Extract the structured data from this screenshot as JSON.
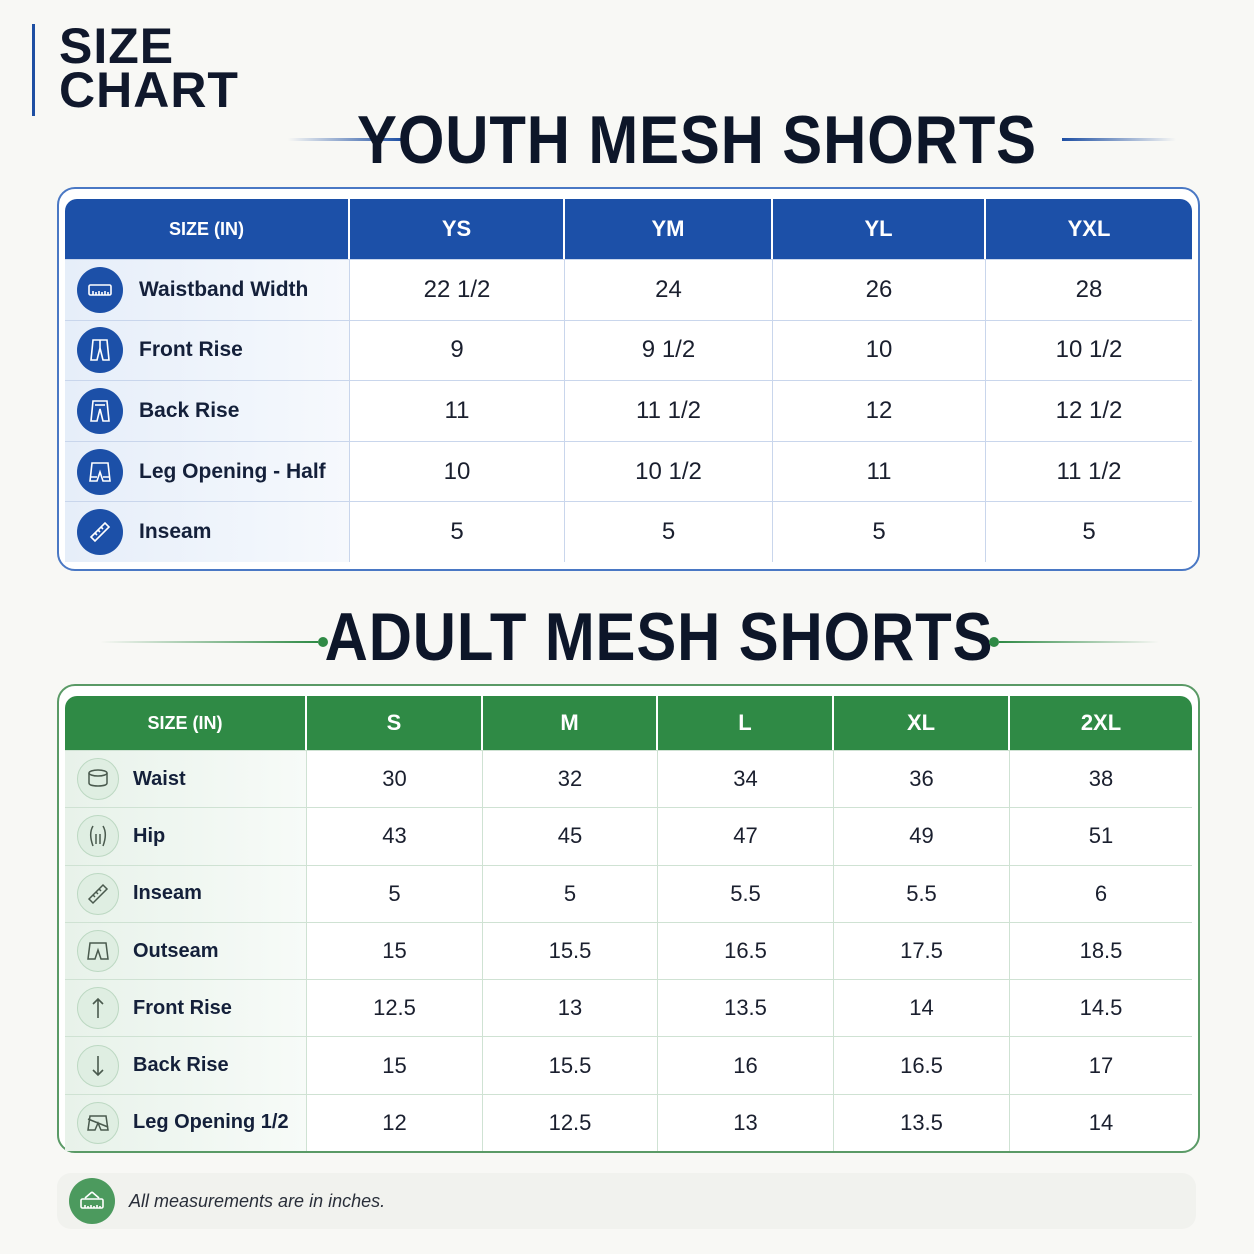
{
  "brand": {
    "line1": "SIZE",
    "line2": "CHART"
  },
  "youth": {
    "title": "YOUTH MESH SHORTS",
    "header": [
      "SIZE (IN)",
      "YS",
      "YM",
      "YL",
      "YXL"
    ],
    "rows": [
      {
        "label": "Waistband Width",
        "icon": "measuring-tape-icon",
        "values": [
          "22 1/2",
          "24",
          "26",
          "28"
        ]
      },
      {
        "label": "Front Rise",
        "icon": "shorts-front-icon",
        "values": [
          "9",
          "9 1/2",
          "10",
          "10 1/2"
        ]
      },
      {
        "label": "Back Rise",
        "icon": "shorts-back-icon",
        "values": [
          "11",
          "11 1/2",
          "12",
          "12 1/2"
        ]
      },
      {
        "label": "Leg Opening - Half",
        "icon": "shorts-leg-icon",
        "values": [
          "10",
          "10 1/2",
          "11",
          "11 1/2"
        ]
      },
      {
        "label": "Inseam",
        "icon": "ruler-icon",
        "values": [
          "5",
          "5",
          "5",
          "5"
        ]
      }
    ]
  },
  "adult": {
    "title": "ADULT MESH SHORTS",
    "header": [
      "SIZE (IN)",
      "S",
      "M",
      "L",
      "XL",
      "2XL"
    ],
    "rows": [
      {
        "label": "Waist",
        "icon": "waist-icon",
        "values": [
          "30",
          "32",
          "34",
          "36",
          "38"
        ]
      },
      {
        "label": "Hip",
        "icon": "hip-icon",
        "values": [
          "43",
          "45",
          "47",
          "49",
          "51"
        ]
      },
      {
        "label": "Inseam",
        "icon": "ruler-icon",
        "values": [
          "5",
          "5",
          "5.5",
          "5.5",
          "6"
        ]
      },
      {
        "label": "Outseam",
        "icon": "shorts-icon",
        "values": [
          "15",
          "15.5",
          "16.5",
          "17.5",
          "18.5"
        ]
      },
      {
        "label": "Front Rise",
        "icon": "arrow-up-icon",
        "values": [
          "12.5",
          "13",
          "13.5",
          "14",
          "14.5"
        ]
      },
      {
        "label": "Back Rise",
        "icon": "arrow-down-icon",
        "values": [
          "15",
          "15.5",
          "16",
          "16.5",
          "17"
        ]
      },
      {
        "label": "Leg Opening 1/2",
        "icon": "leg-opening-icon",
        "values": [
          "12",
          "12.5",
          "13",
          "13.5",
          "14"
        ]
      }
    ]
  },
  "note": {
    "text": "All measurements are in inches.",
    "icon": "measuring-tape-icon"
  },
  "colors": {
    "youth_accent": "#1c50a8",
    "adult_accent": "#2f8a45",
    "title": "#0d1629"
  }
}
